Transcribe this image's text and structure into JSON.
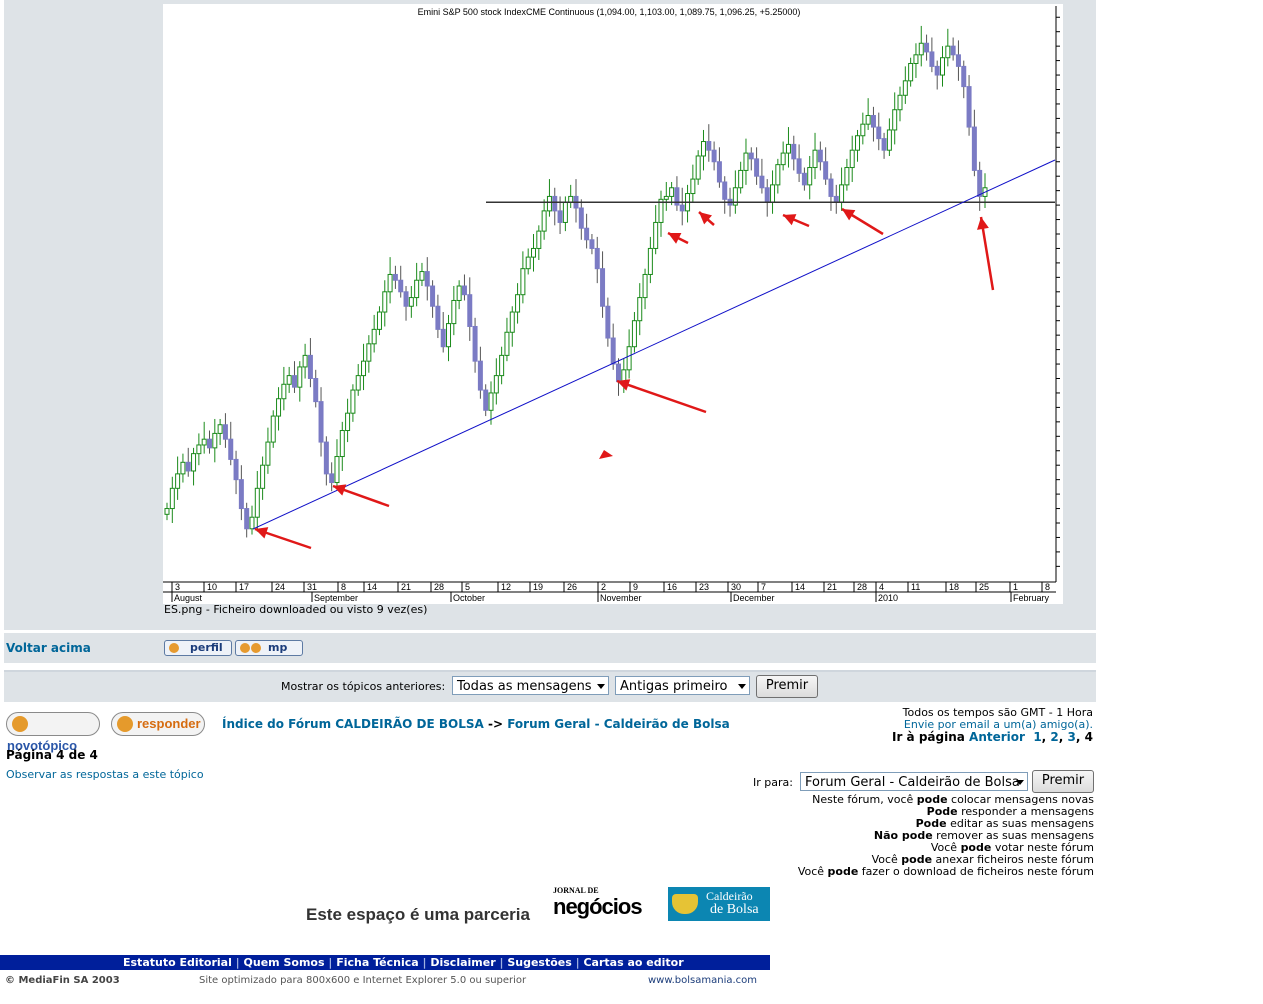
{
  "post": {
    "attachment_caption": "ES.png - Ficheiro downloaded ou visto 9 vez(es)",
    "back_to_top": "Voltar acima",
    "profile_label": "perfil",
    "pm_label": "mp"
  },
  "chart_data": {
    "type": "candlestick",
    "title": "Emini S&P 500 stock IndexCME Continuous (1,094.00, 1,103.00, 1,089.75, 1,096.25, +5.25000)",
    "ylim": [
      960,
      1165
    ],
    "y_ticks": [
      965,
      970,
      975,
      980,
      985,
      990,
      995,
      1000,
      1005,
      1010,
      1015,
      1020,
      1025,
      1030,
      1035,
      1040,
      1045,
      1050,
      1055,
      1060,
      1065,
      1070,
      1075,
      1080,
      1085,
      1090,
      1095,
      1100,
      1105,
      1110,
      1115,
      1120,
      1125,
      1130,
      1135,
      1140,
      1145,
      1150,
      1155,
      1160
    ],
    "x_day_ticks": [
      "3",
      "10",
      "17",
      "24",
      "31",
      "8",
      "14",
      "21",
      "28",
      "5",
      "12",
      "19",
      "26",
      "2",
      "9",
      "16",
      "23",
      "30",
      "7",
      "14",
      "21",
      "28",
      "4",
      "11",
      "18",
      "25",
      "1",
      "8"
    ],
    "x_month_labels": [
      "August",
      "September",
      "October",
      "November",
      "December",
      "2010",
      "February"
    ],
    "close_series": [
      985,
      992,
      997,
      1001,
      998,
      1004,
      1007,
      1009,
      1006,
      1011,
      1014,
      1009,
      1002,
      995,
      985,
      978,
      982,
      992,
      1000,
      1008,
      1017,
      1023,
      1028,
      1031,
      1027,
      1034,
      1038,
      1030,
      1022,
      1008,
      997,
      994,
      1003,
      1012,
      1018,
      1026,
      1031,
      1036,
      1042,
      1047,
      1053,
      1060,
      1066,
      1064,
      1060,
      1055,
      1058,
      1064,
      1067,
      1062,
      1055,
      1047,
      1041,
      1049,
      1057,
      1062,
      1059,
      1048,
      1036,
      1026,
      1019,
      1025,
      1031,
      1038,
      1046,
      1053,
      1059,
      1068,
      1072,
      1075,
      1081,
      1088,
      1093,
      1088,
      1084,
      1091,
      1093,
      1089,
      1082,
      1078,
      1075,
      1068,
      1055,
      1044,
      1035,
      1029,
      1033,
      1041,
      1050,
      1058,
      1066,
      1075,
      1084,
      1092,
      1093,
      1096,
      1090,
      1088,
      1094,
      1099,
      1107,
      1112,
      1109,
      1105,
      1098,
      1092,
      1090,
      1096,
      1102,
      1108,
      1106,
      1100,
      1096,
      1091,
      1097,
      1104,
      1108,
      1111,
      1106,
      1101,
      1097,
      1103,
      1109,
      1105,
      1099,
      1093,
      1091,
      1097,
      1103,
      1109,
      1114,
      1118,
      1121,
      1117,
      1113,
      1109,
      1116,
      1123,
      1128,
      1133,
      1139,
      1142,
      1146,
      1143,
      1138,
      1135,
      1141,
      1145,
      1142,
      1138,
      1131,
      1117,
      1102,
      1093,
      1096
    ],
    "annotations": {
      "horizontal_line": 1091,
      "trendline": [
        [
          0,
          977
        ],
        [
          1,
          1107
        ]
      ],
      "arrows": 10
    }
  },
  "filter": {
    "label": "Mostrar os tópicos anteriores:",
    "range_value": "Todas as mensagens",
    "order_value": "Antigas primeiro",
    "go_label": "Premir"
  },
  "actions": {
    "new_topic": "novotópico",
    "reply": "responder"
  },
  "breadcrumb": {
    "index": "Índice do Fórum CALDEIRÃO DE BOLSA",
    "sep": "->",
    "forum": "Forum Geral - Caldeirão de Bolsa"
  },
  "page_info": {
    "timezone": "Todos os tempos são GMT - 1 Hora",
    "email_friend": "Envie por email a um(a) amigo(a).",
    "goto_label": "Ir à página",
    "prev": "Anterior",
    "pages": [
      "1",
      "2",
      "3",
      "4"
    ],
    "page_of": "Página 4 de 4",
    "watch": "Observar as respostas a este tópico"
  },
  "jump": {
    "label": "Ir para:",
    "value": "Forum Geral - Caldeirão de Bolsa",
    "go_label": "Premir"
  },
  "permissions": [
    [
      "Neste fórum, você ",
      "pode",
      " colocar mensagens novas"
    ],
    [
      "",
      "Pode",
      " responder a mensagens"
    ],
    [
      "",
      "Pode",
      " editar as suas mensagens"
    ],
    [
      "",
      "Não pode",
      " remover as suas mensagens"
    ],
    [
      "Você ",
      "pode",
      " votar neste fórum"
    ],
    [
      "Você ",
      "pode",
      " anexar ficheiros neste fórum"
    ],
    [
      "Você ",
      "pode",
      " fazer o download de ficheiros neste fórum"
    ]
  ],
  "partner": {
    "text": "Este espaço é uma parceria",
    "logo1_top": "JORNAL DE",
    "logo1_main": "negócios",
    "logo2_line1": "Caldeirão",
    "logo2_line2": "de Bolsa"
  },
  "footer": {
    "links": [
      "Estatuto Editorial",
      "Quem Somos",
      "Ficha Técnica",
      "Disclaimer",
      "Sugestões",
      "Cartas ao editor"
    ],
    "copyright": "© MediaFin SA 2003",
    "optimized": "Site optimizado para 800x600 e Internet Explorer 5.0 ou superior",
    "site": "www.bolsamania.com"
  },
  "colors": {
    "panel": "#dee3e7",
    "link": "#006699",
    "up_candle": "#1a8a1a",
    "down_candle": "#7b7bc4",
    "trendline": "#1010c8",
    "arrow": "#e01818",
    "footer_bar": "#001f9b"
  }
}
